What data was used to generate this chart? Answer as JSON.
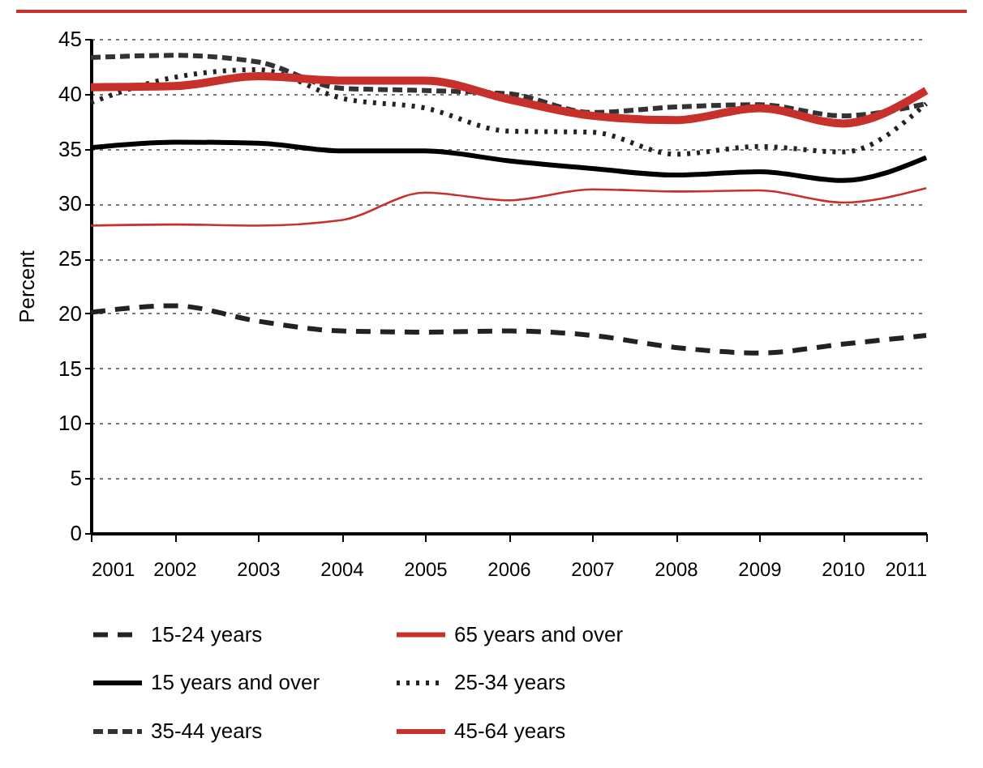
{
  "chart_data": {
    "type": "line",
    "ylabel": "Percent",
    "categories": [
      "2001",
      "2002",
      "2003",
      "2004",
      "2005",
      "2006",
      "2007",
      "2008",
      "2009",
      "2010",
      "2011"
    ],
    "ylim": [
      0,
      45
    ],
    "yticks": [
      0,
      5,
      10,
      15,
      20,
      25,
      30,
      35,
      40,
      45
    ],
    "grid": "y",
    "legend": "bottom",
    "series": [
      {
        "name": "15-24 years",
        "color": "#222222",
        "line_style": "dashed",
        "values": [
          20.1,
          20.7,
          19.3,
          18.4,
          18.3,
          18.4,
          18.0,
          16.9,
          16.4,
          17.2,
          18.0
        ]
      },
      {
        "name": "65 years and over",
        "color": "#c8302c",
        "line_style": "solid",
        "values": [
          28.0,
          28.1,
          28.0,
          28.5,
          31.0,
          30.3,
          31.3,
          31.1,
          31.2,
          30.1,
          31.4
        ]
      },
      {
        "name": "15 years and over",
        "color": "#000000",
        "line_style": "solid",
        "values": [
          35.1,
          35.6,
          35.5,
          34.8,
          34.8,
          33.9,
          33.2,
          32.6,
          32.9,
          32.1,
          34.2
        ]
      },
      {
        "name": "25-34 years",
        "color": "#222222",
        "line_style": "dotted",
        "values": [
          39.2,
          41.5,
          42.2,
          39.6,
          38.7,
          36.6,
          36.5,
          34.5,
          35.2,
          34.7,
          39.1
        ]
      },
      {
        "name": "35-44 years",
        "color": "#333333",
        "line_style": "dashed",
        "values": [
          43.3,
          43.5,
          42.9,
          40.5,
          40.3,
          40.0,
          38.3,
          38.8,
          39.0,
          38.0,
          39.1
        ]
      },
      {
        "name": "45-64 years",
        "color": "#c8302c",
        "line_style": "solid",
        "values": [
          40.6,
          40.7,
          41.6,
          41.2,
          41.2,
          39.5,
          38.0,
          37.6,
          38.7,
          37.3,
          40.3
        ]
      }
    ]
  }
}
